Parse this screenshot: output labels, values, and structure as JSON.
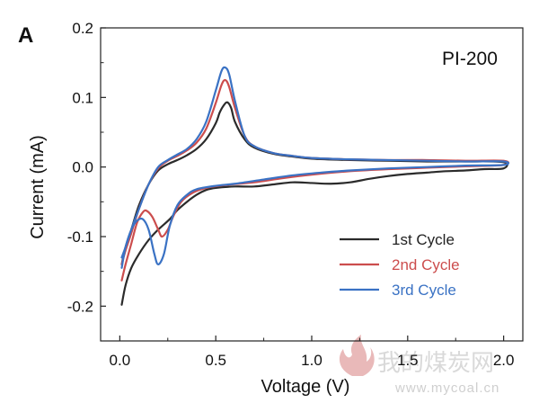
{
  "panel_letter": "A",
  "annotation": "PI-200",
  "watermark": {
    "text": "我的煤炭网",
    "url": "www.mycoal.cn"
  },
  "chart_data": {
    "type": "line",
    "title": "",
    "xlabel": "Voltage (V)",
    "ylabel": "Current (mA)",
    "xlim": [
      -0.1,
      2.1
    ],
    "ylim": [
      -0.25,
      0.2
    ],
    "xticks": [
      0.0,
      0.5,
      1.0,
      1.5,
      2.0
    ],
    "xtick_labels": [
      "0.0",
      "0.5",
      "1.0",
      "1.5",
      "2.0"
    ],
    "yticks": [
      -0.2,
      -0.1,
      0.0,
      0.1,
      0.2
    ],
    "ytick_labels": [
      "-0.2",
      "-0.1",
      "0.0",
      "0.1",
      "0.2"
    ],
    "grid": false,
    "legend_position": "bottom-right",
    "series": [
      {
        "name": "1st  Cycle",
        "color": "#2b2b2b",
        "points": [
          [
            0.01,
            -0.198
          ],
          [
            0.03,
            -0.17
          ],
          [
            0.06,
            -0.145
          ],
          [
            0.1,
            -0.125
          ],
          [
            0.15,
            -0.105
          ],
          [
            0.2,
            -0.09
          ],
          [
            0.26,
            -0.075
          ],
          [
            0.3,
            -0.062
          ],
          [
            0.35,
            -0.05
          ],
          [
            0.4,
            -0.04
          ],
          [
            0.45,
            -0.033
          ],
          [
            0.5,
            -0.03
          ],
          [
            0.6,
            -0.028
          ],
          [
            0.7,
            -0.028
          ],
          [
            0.8,
            -0.025
          ],
          [
            0.9,
            -0.022
          ],
          [
            1.0,
            -0.023
          ],
          [
            1.1,
            -0.024
          ],
          [
            1.2,
            -0.022
          ],
          [
            1.3,
            -0.017
          ],
          [
            1.4,
            -0.013
          ],
          [
            1.5,
            -0.01
          ],
          [
            1.6,
            -0.008
          ],
          [
            1.7,
            -0.006
          ],
          [
            1.8,
            -0.005
          ],
          [
            1.9,
            -0.003
          ],
          [
            2.0,
            -0.002
          ],
          [
            2.0,
            0.007
          ],
          [
            1.8,
            0.008
          ],
          [
            1.6,
            0.008
          ],
          [
            1.4,
            0.009
          ],
          [
            1.2,
            0.01
          ],
          [
            1.0,
            0.012
          ],
          [
            0.9,
            0.015
          ],
          [
            0.8,
            0.019
          ],
          [
            0.7,
            0.028
          ],
          [
            0.65,
            0.04
          ],
          [
            0.6,
            0.065
          ],
          [
            0.58,
            0.085
          ],
          [
            0.56,
            0.093
          ],
          [
            0.54,
            0.088
          ],
          [
            0.52,
            0.078
          ],
          [
            0.5,
            0.063
          ],
          [
            0.45,
            0.04
          ],
          [
            0.4,
            0.026
          ],
          [
            0.35,
            0.017
          ],
          [
            0.3,
            0.01
          ],
          [
            0.25,
            0.004
          ],
          [
            0.2,
            -0.005
          ],
          [
            0.15,
            -0.025
          ],
          [
            0.1,
            -0.055
          ],
          [
            0.06,
            -0.09
          ],
          [
            0.03,
            -0.115
          ],
          [
            0.01,
            -0.14
          ]
        ]
      },
      {
        "name": "2nd Cycle",
        "color": "#cc4d4d",
        "points": [
          [
            0.01,
            -0.163
          ],
          [
            0.03,
            -0.14
          ],
          [
            0.06,
            -0.11
          ],
          [
            0.09,
            -0.08
          ],
          [
            0.12,
            -0.065
          ],
          [
            0.14,
            -0.063
          ],
          [
            0.17,
            -0.072
          ],
          [
            0.2,
            -0.09
          ],
          [
            0.22,
            -0.1
          ],
          [
            0.25,
            -0.09
          ],
          [
            0.28,
            -0.07
          ],
          [
            0.32,
            -0.05
          ],
          [
            0.38,
            -0.037
          ],
          [
            0.45,
            -0.03
          ],
          [
            0.55,
            -0.026
          ],
          [
            0.7,
            -0.022
          ],
          [
            0.85,
            -0.016
          ],
          [
            1.0,
            -0.011
          ],
          [
            1.2,
            -0.006
          ],
          [
            1.4,
            -0.003
          ],
          [
            1.6,
            -0.001
          ],
          [
            1.8,
            0.001
          ],
          [
            2.0,
            0.003
          ],
          [
            2.0,
            0.009
          ],
          [
            1.8,
            0.009
          ],
          [
            1.6,
            0.01
          ],
          [
            1.4,
            0.01
          ],
          [
            1.2,
            0.011
          ],
          [
            1.0,
            0.013
          ],
          [
            0.9,
            0.016
          ],
          [
            0.8,
            0.02
          ],
          [
            0.7,
            0.03
          ],
          [
            0.65,
            0.045
          ],
          [
            0.6,
            0.085
          ],
          [
            0.57,
            0.115
          ],
          [
            0.55,
            0.125
          ],
          [
            0.53,
            0.118
          ],
          [
            0.5,
            0.092
          ],
          [
            0.45,
            0.055
          ],
          [
            0.4,
            0.035
          ],
          [
            0.35,
            0.024
          ],
          [
            0.3,
            0.016
          ],
          [
            0.25,
            0.009
          ],
          [
            0.2,
            -0.002
          ],
          [
            0.15,
            -0.025
          ],
          [
            0.1,
            -0.06
          ],
          [
            0.06,
            -0.095
          ],
          [
            0.03,
            -0.12
          ],
          [
            0.01,
            -0.14
          ]
        ]
      },
      {
        "name": "3rd Cycle",
        "color": "#3a72c4",
        "points": [
          [
            0.01,
            -0.145
          ],
          [
            0.03,
            -0.115
          ],
          [
            0.06,
            -0.09
          ],
          [
            0.09,
            -0.077
          ],
          [
            0.12,
            -0.075
          ],
          [
            0.15,
            -0.09
          ],
          [
            0.18,
            -0.125
          ],
          [
            0.2,
            -0.14
          ],
          [
            0.23,
            -0.125
          ],
          [
            0.26,
            -0.085
          ],
          [
            0.3,
            -0.055
          ],
          [
            0.35,
            -0.04
          ],
          [
            0.4,
            -0.032
          ],
          [
            0.5,
            -0.027
          ],
          [
            0.6,
            -0.024
          ],
          [
            0.75,
            -0.018
          ],
          [
            0.9,
            -0.012
          ],
          [
            1.05,
            -0.008
          ],
          [
            1.2,
            -0.005
          ],
          [
            1.4,
            -0.002
          ],
          [
            1.6,
            0.0
          ],
          [
            1.8,
            0.002
          ],
          [
            2.0,
            0.003
          ],
          [
            2.0,
            0.008
          ],
          [
            1.8,
            0.008
          ],
          [
            1.6,
            0.009
          ],
          [
            1.4,
            0.01
          ],
          [
            1.2,
            0.011
          ],
          [
            1.0,
            0.013
          ],
          [
            0.9,
            0.016
          ],
          [
            0.8,
            0.02
          ],
          [
            0.7,
            0.03
          ],
          [
            0.65,
            0.045
          ],
          [
            0.6,
            0.095
          ],
          [
            0.57,
            0.133
          ],
          [
            0.55,
            0.143
          ],
          [
            0.53,
            0.138
          ],
          [
            0.5,
            0.11
          ],
          [
            0.45,
            0.065
          ],
          [
            0.4,
            0.04
          ],
          [
            0.35,
            0.026
          ],
          [
            0.3,
            0.018
          ],
          [
            0.25,
            0.01
          ],
          [
            0.2,
            0.0
          ],
          [
            0.15,
            -0.025
          ],
          [
            0.1,
            -0.06
          ],
          [
            0.06,
            -0.09
          ],
          [
            0.03,
            -0.115
          ],
          [
            0.01,
            -0.13
          ]
        ]
      }
    ]
  }
}
